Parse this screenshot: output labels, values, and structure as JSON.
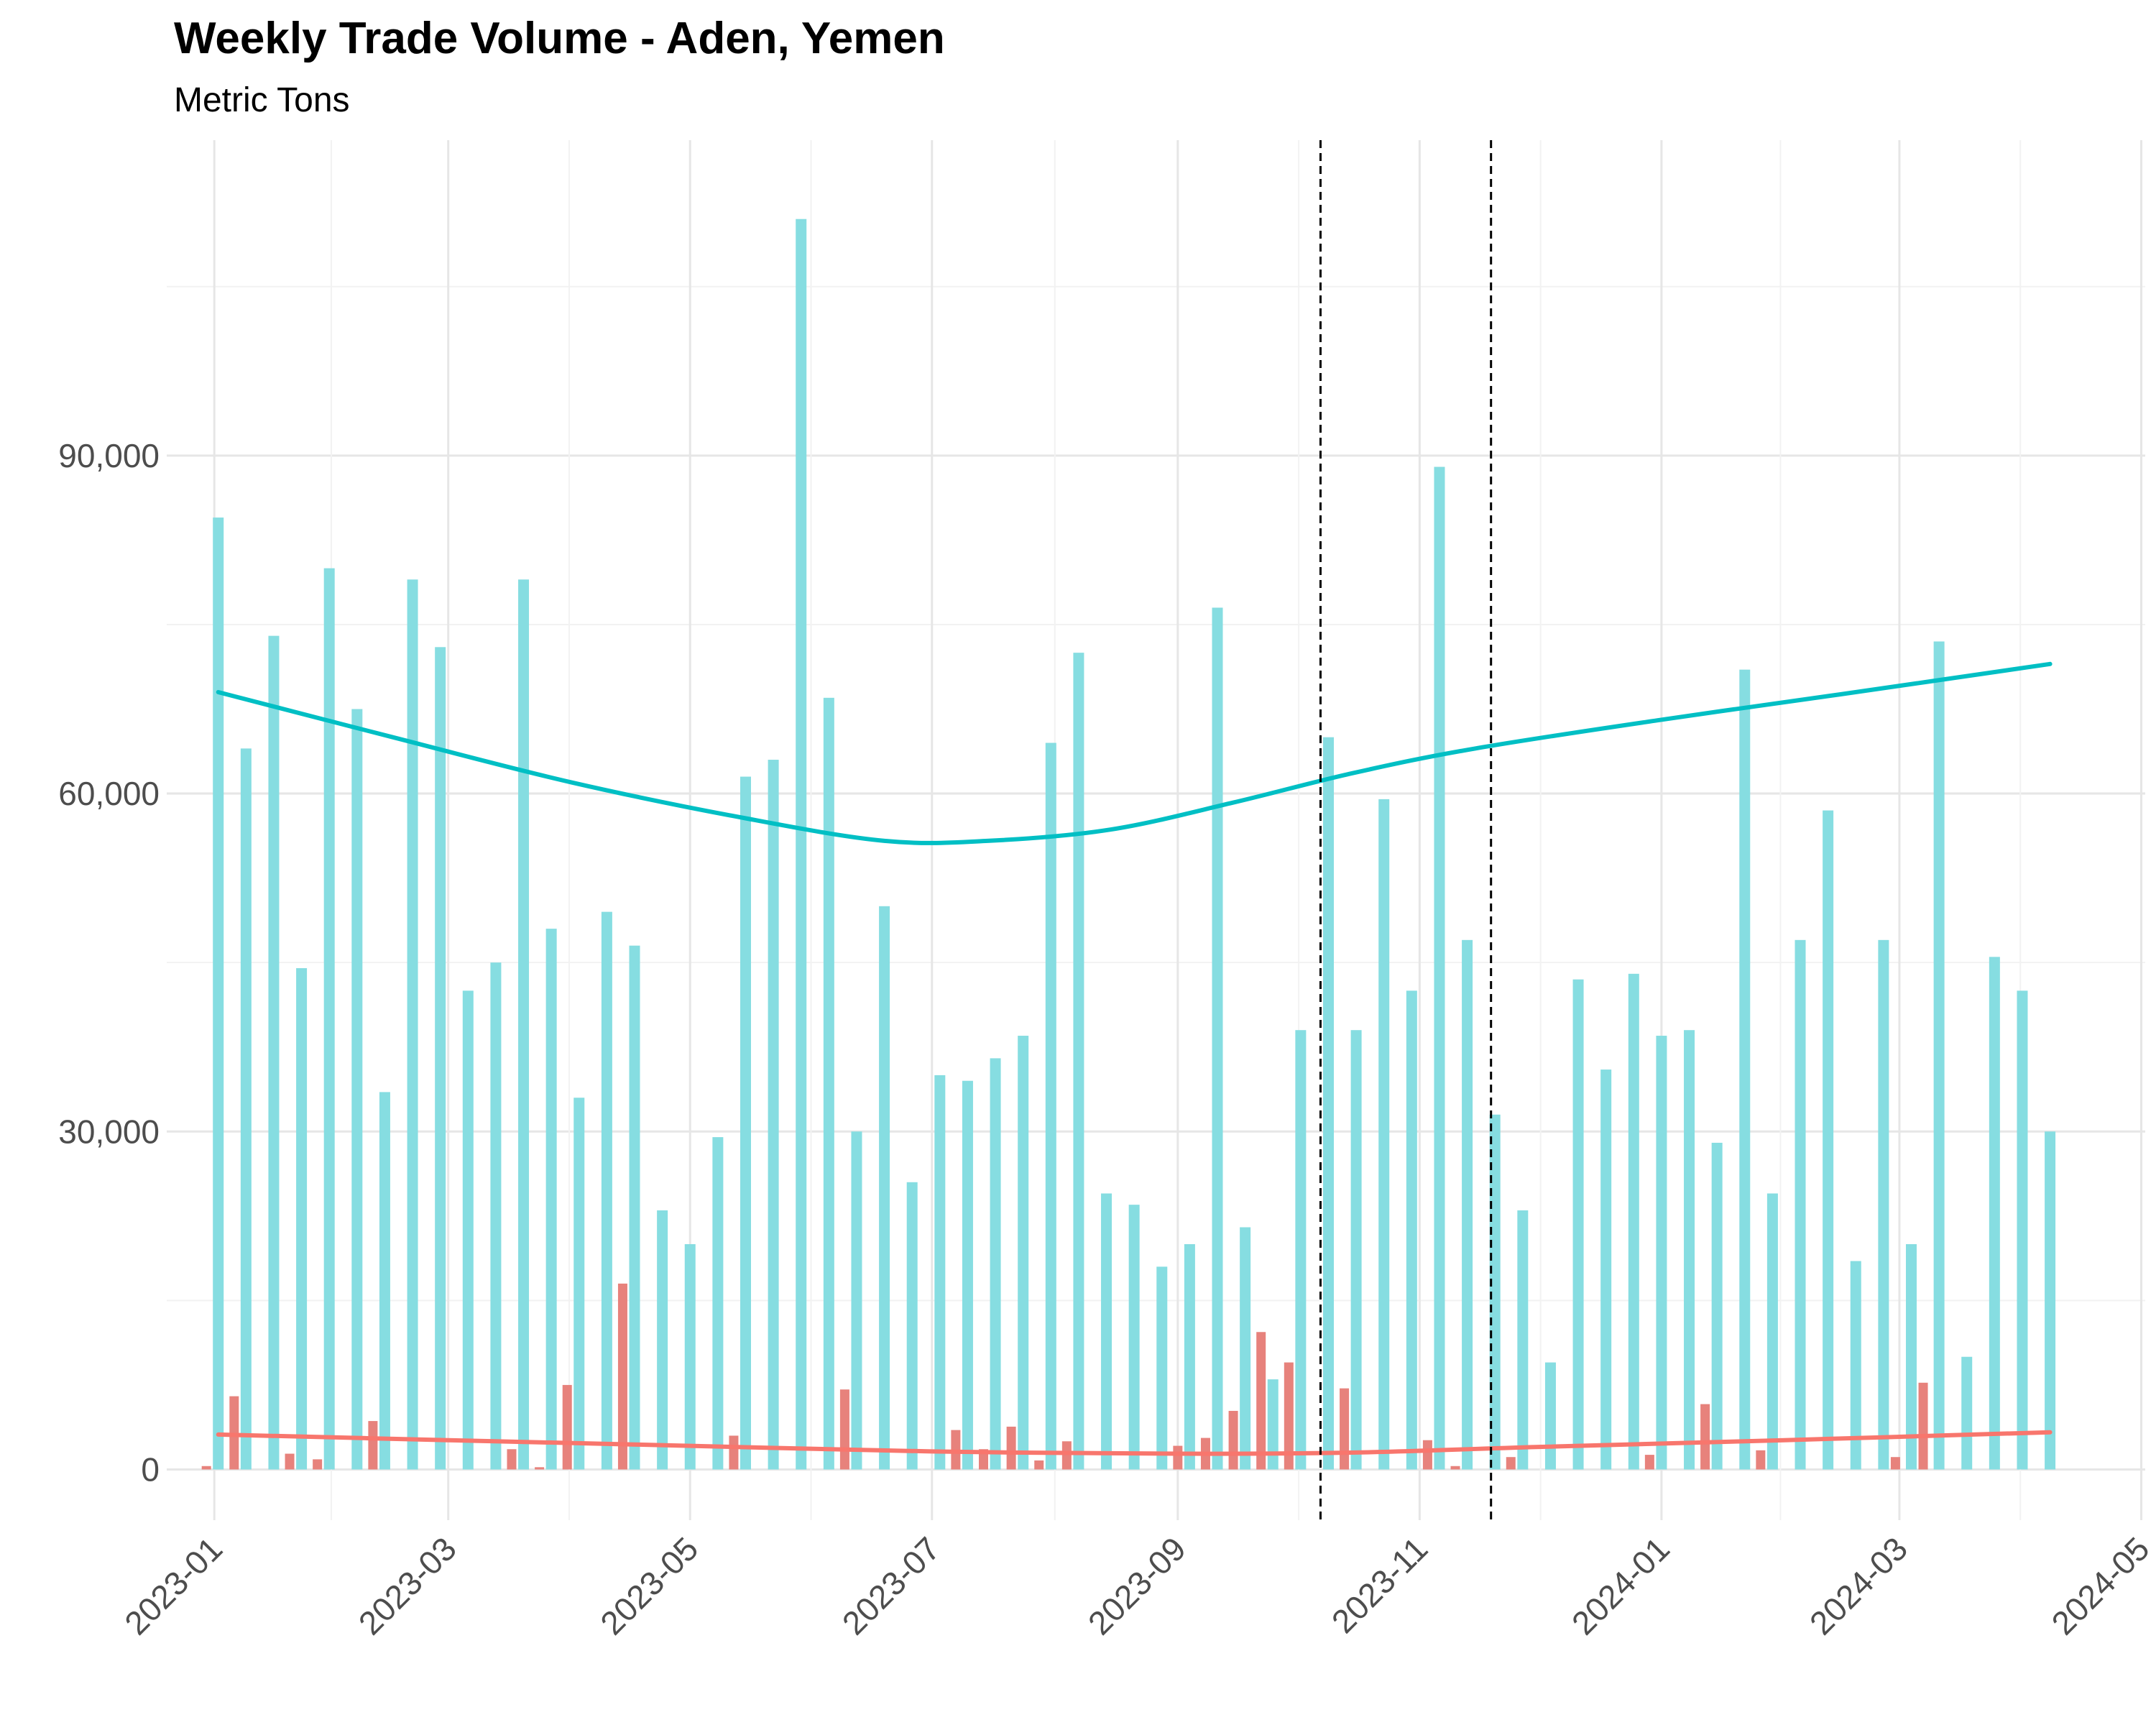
{
  "chart_data": {
    "type": "bar",
    "title": "Weekly Trade Volume - Aden, Yemen",
    "subtitle": "Metric Tons",
    "xlabel": "",
    "ylabel": "",
    "x_axis": {
      "type": "date",
      "range": [
        "2022-12-20",
        "2024-05-02"
      ],
      "ticks": [
        "2023-01",
        "2023-03",
        "2023-05",
        "2023-07",
        "2023-09",
        "2023-11",
        "2024-01",
        "2024-03",
        "2024-05"
      ]
    },
    "y_axis": {
      "range": [
        -4500,
        118000
      ],
      "ticks": [
        0,
        30000,
        60000,
        90000
      ],
      "tick_labels": [
        "0",
        "30,000",
        "60,000",
        "90,000"
      ]
    },
    "grid": true,
    "legend": "none",
    "vertical_markers": [
      "2023-10-07",
      "2023-11-19"
    ],
    "colors": {
      "cyan_bars": "#86dde1",
      "cyan_line": "#00bfc4",
      "red_bars": "#e7827c",
      "red_line": "#f8766d",
      "marker": "#000000"
    },
    "series": [
      {
        "kind": "bar",
        "color_key": "cyan",
        "points": [
          [
            "2023-01-02",
            84500
          ],
          [
            "2023-01-09",
            64000
          ],
          [
            "2023-01-16",
            74000
          ],
          [
            "2023-01-23",
            44500
          ],
          [
            "2023-01-30",
            80000
          ],
          [
            "2023-02-06",
            67500
          ],
          [
            "2023-02-13",
            33500
          ],
          [
            "2023-02-20",
            79000
          ],
          [
            "2023-02-27",
            73000
          ],
          [
            "2023-03-06",
            42500
          ],
          [
            "2023-03-13",
            45000
          ],
          [
            "2023-03-20",
            79000
          ],
          [
            "2023-03-27",
            48000
          ],
          [
            "2023-04-03",
            33000
          ],
          [
            "2023-04-10",
            49500
          ],
          [
            "2023-04-17",
            46500
          ],
          [
            "2023-04-24",
            23000
          ],
          [
            "2023-05-01",
            20000
          ],
          [
            "2023-05-08",
            29500
          ],
          [
            "2023-05-15",
            61500
          ],
          [
            "2023-05-22",
            63000
          ],
          [
            "2023-05-29",
            111000
          ],
          [
            "2023-06-05",
            68500
          ],
          [
            "2023-06-12",
            30000
          ],
          [
            "2023-06-19",
            50000
          ],
          [
            "2023-06-26",
            25500
          ],
          [
            "2023-07-03",
            35000
          ],
          [
            "2023-07-10",
            34500
          ],
          [
            "2023-07-17",
            36500
          ],
          [
            "2023-07-24",
            38500
          ],
          [
            "2023-07-31",
            64500
          ],
          [
            "2023-08-07",
            72500
          ],
          [
            "2023-08-14",
            24500
          ],
          [
            "2023-08-21",
            23500
          ],
          [
            "2023-08-28",
            18000
          ],
          [
            "2023-09-04",
            20000
          ],
          [
            "2023-09-11",
            76500
          ],
          [
            "2023-09-18",
            21500
          ],
          [
            "2023-09-25",
            8000
          ],
          [
            "2023-10-02",
            39000
          ],
          [
            "2023-10-09",
            65000
          ],
          [
            "2023-10-16",
            39000
          ],
          [
            "2023-10-23",
            59500
          ],
          [
            "2023-10-30",
            42500
          ],
          [
            "2023-11-06",
            89000
          ],
          [
            "2023-11-13",
            47000
          ],
          [
            "2023-11-20",
            31500
          ],
          [
            "2023-11-27",
            23000
          ],
          [
            "2023-12-04",
            9500
          ],
          [
            "2023-12-11",
            43500
          ],
          [
            "2023-12-18",
            35500
          ],
          [
            "2023-12-25",
            44000
          ],
          [
            "2024-01-01",
            38500
          ],
          [
            "2024-01-08",
            39000
          ],
          [
            "2024-01-15",
            29000
          ],
          [
            "2024-01-22",
            71000
          ],
          [
            "2024-01-29",
            24500
          ],
          [
            "2024-02-05",
            47000
          ],
          [
            "2024-02-12",
            58500
          ],
          [
            "2024-02-19",
            18500
          ],
          [
            "2024-02-26",
            47000
          ],
          [
            "2024-03-04",
            20000
          ],
          [
            "2024-03-11",
            73500
          ],
          [
            "2024-03-18",
            10000
          ],
          [
            "2024-03-25",
            45500
          ],
          [
            "2024-04-01",
            42500
          ],
          [
            "2024-04-08",
            30000
          ]
        ]
      },
      {
        "kind": "bar",
        "color_key": "red",
        "points": [
          [
            "2022-12-30",
            300
          ],
          [
            "2023-01-06",
            6500
          ],
          [
            "2023-01-20",
            1400
          ],
          [
            "2023-01-27",
            900
          ],
          [
            "2023-02-10",
            4300
          ],
          [
            "2023-03-17",
            1800
          ],
          [
            "2023-03-24",
            200
          ],
          [
            "2023-03-31",
            7500
          ],
          [
            "2023-04-14",
            16500
          ],
          [
            "2023-05-12",
            3000
          ],
          [
            "2023-06-09",
            7100
          ],
          [
            "2023-07-07",
            3500
          ],
          [
            "2023-07-14",
            1800
          ],
          [
            "2023-07-21",
            3800
          ],
          [
            "2023-07-28",
            800
          ],
          [
            "2023-08-04",
            2500
          ],
          [
            "2023-09-01",
            2100
          ],
          [
            "2023-09-08",
            2800
          ],
          [
            "2023-09-15",
            5200
          ],
          [
            "2023-09-22",
            12200
          ],
          [
            "2023-09-29",
            9500
          ],
          [
            "2023-10-13",
            7200
          ],
          [
            "2023-11-03",
            2600
          ],
          [
            "2023-11-10",
            300
          ],
          [
            "2023-11-24",
            1100
          ],
          [
            "2023-12-29",
            1300
          ],
          [
            "2024-01-12",
            5800
          ],
          [
            "2024-01-26",
            1700
          ],
          [
            "2024-02-29",
            1100
          ],
          [
            "2024-03-07",
            7700
          ]
        ]
      },
      {
        "kind": "line",
        "color_key": "cyan",
        "points": [
          [
            "2023-01-02",
            69000
          ],
          [
            "2023-02-15",
            65000
          ],
          [
            "2023-04-01",
            61000
          ],
          [
            "2023-05-15",
            57800
          ],
          [
            "2023-06-19",
            55800
          ],
          [
            "2023-07-15",
            55800
          ],
          [
            "2023-08-15",
            56800
          ],
          [
            "2023-09-15",
            59200
          ],
          [
            "2023-10-15",
            61800
          ],
          [
            "2023-11-15",
            64000
          ],
          [
            "2023-12-31",
            66500
          ],
          [
            "2024-02-15",
            68800
          ],
          [
            "2024-04-08",
            71500
          ]
        ]
      },
      {
        "kind": "line",
        "color_key": "red",
        "points": [
          [
            "2023-01-02",
            3100
          ],
          [
            "2023-03-01",
            2600
          ],
          [
            "2023-05-01",
            2100
          ],
          [
            "2023-07-01",
            1600
          ],
          [
            "2023-09-01",
            1400
          ],
          [
            "2023-10-15",
            1500
          ],
          [
            "2023-12-01",
            2000
          ],
          [
            "2024-02-01",
            2600
          ],
          [
            "2024-04-08",
            3300
          ]
        ]
      }
    ]
  }
}
